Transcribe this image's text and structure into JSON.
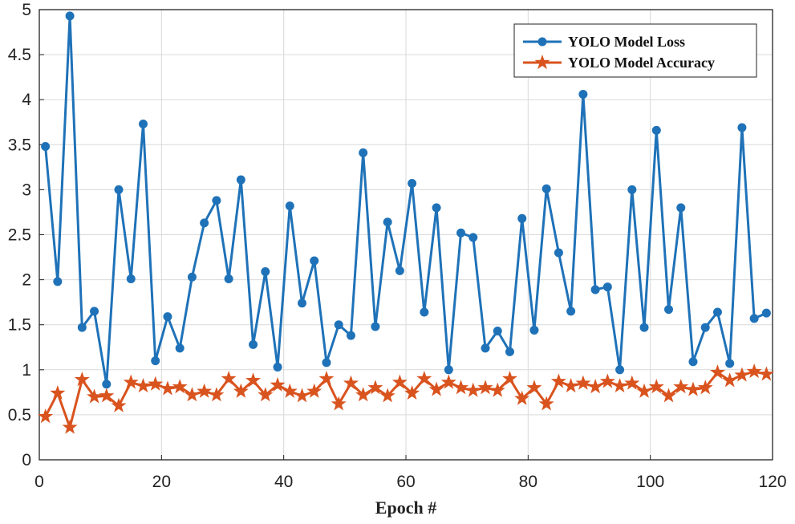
{
  "chart_data": {
    "type": "line",
    "title": "",
    "xlabel": "Epoch #",
    "ylabel": "",
    "xlim": [
      0,
      120
    ],
    "ylim": [
      0,
      5
    ],
    "xticks": [
      0,
      20,
      40,
      60,
      80,
      100,
      120
    ],
    "yticks": [
      0,
      0.5,
      1,
      1.5,
      2,
      2.5,
      3,
      3.5,
      4,
      4.5,
      5
    ],
    "ytick_labels": [
      "0",
      "0.5",
      "1",
      "1.5",
      "2",
      "2.5",
      "3",
      "3.5",
      "4",
      "4.5",
      "5"
    ],
    "grid": true,
    "legend_position": "top-right",
    "x": [
      1,
      3,
      5,
      7,
      9,
      11,
      13,
      15,
      17,
      19,
      21,
      23,
      25,
      27,
      29,
      31,
      33,
      35,
      37,
      39,
      41,
      43,
      45,
      47,
      49,
      51,
      53,
      55,
      57,
      59,
      61,
      63,
      65,
      67,
      69,
      71,
      73,
      75,
      77,
      79,
      81,
      83,
      85,
      87,
      89,
      91,
      93,
      95,
      97,
      99,
      101,
      103,
      105,
      107,
      109,
      111,
      113,
      115,
      117,
      119
    ],
    "series": [
      {
        "name": "YOLO Model Loss",
        "color": "#1f72b8",
        "marker": "circle",
        "values": [
          3.48,
          1.98,
          4.93,
          1.47,
          1.65,
          0.84,
          3.0,
          2.01,
          3.73,
          1.1,
          1.59,
          1.24,
          2.03,
          2.63,
          2.88,
          2.01,
          3.11,
          1.28,
          2.09,
          1.03,
          2.82,
          1.74,
          2.21,
          1.08,
          1.5,
          1.38,
          3.41,
          1.48,
          2.64,
          2.1,
          3.07,
          1.64,
          2.8,
          1.0,
          2.52,
          2.47,
          1.24,
          1.43,
          1.2,
          2.68,
          1.44,
          3.01,
          2.3,
          1.65,
          4.06,
          1.89,
          1.92,
          1.0,
          3.0,
          1.47,
          3.66,
          1.67,
          2.8,
          1.09,
          1.47,
          1.64,
          1.07,
          3.69,
          1.57,
          1.63
        ]
      },
      {
        "name": "YOLO Model Accuracy",
        "color": "#d9531e",
        "marker": "star",
        "values": [
          0.48,
          0.74,
          0.36,
          0.89,
          0.7,
          0.71,
          0.6,
          0.86,
          0.82,
          0.84,
          0.79,
          0.81,
          0.72,
          0.76,
          0.72,
          0.9,
          0.76,
          0.88,
          0.72,
          0.83,
          0.76,
          0.71,
          0.76,
          0.9,
          0.62,
          0.85,
          0.72,
          0.8,
          0.71,
          0.86,
          0.74,
          0.9,
          0.78,
          0.86,
          0.8,
          0.77,
          0.8,
          0.77,
          0.9,
          0.68,
          0.8,
          0.62,
          0.87,
          0.82,
          0.85,
          0.81,
          0.87,
          0.82,
          0.85,
          0.76,
          0.81,
          0.71,
          0.81,
          0.78,
          0.8,
          0.97,
          0.88,
          0.94,
          0.98,
          0.95
        ]
      }
    ]
  }
}
